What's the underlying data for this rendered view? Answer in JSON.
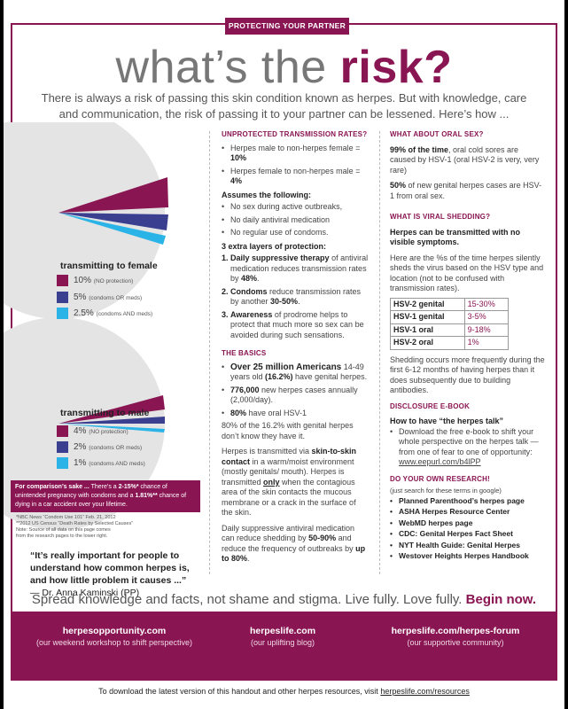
{
  "banner": "PROTECTING YOUR PARTNER",
  "title": {
    "pre": "what’s the ",
    "strong": "risk?"
  },
  "intro": "There is always a risk of passing this skin condition known as herpes. But with knowledge, care and communication, the risk of passing it to your partner can be lessened. Here’s how ...",
  "female": {
    "label": "transmitting to female",
    "items": [
      {
        "pct": "10%",
        "note": "(NO protection)",
        "color": "#8a1553"
      },
      {
        "pct": "5%",
        "note": "(condoms OR meds)",
        "color": "#3a3f8f"
      },
      {
        "pct": "2.5%",
        "note": "(condoms AND meds)",
        "color": "#29b3e6"
      }
    ]
  },
  "male": {
    "label": "transmitting to male",
    "items": [
      {
        "pct": "4%",
        "note": "(NO protection)",
        "color": "#8a1553"
      },
      {
        "pct": "2%",
        "note": "(condoms OR meds)",
        "color": "#3a3f8f"
      },
      {
        "pct": "1%",
        "note": "(condoms AND meds)",
        "color": "#29b3e6"
      }
    ]
  },
  "compare": {
    "lead": "For comparison’s sake ...",
    "l1a": " There’s a ",
    "r1": "2-15%*",
    "l1b": " chance of unintended pregnancy with condoms and a ",
    "r2": "1.81%**",
    "l2": " chance of dying in a car accident over your lifetime."
  },
  "notes": [
    "*NBC News “Condom Use 101” Feb. 21, 2012",
    "**2012 US Census “Death Rates by Selected Causes”",
    "Note: Source of all data on this page comes",
    "from the research pages to the lower right."
  ],
  "quote": {
    "text": "“It’s really important for people to understand how common herpes is, and how little problem it causes ...”",
    "who": "— Dr. Anna Kaminski (PP)"
  },
  "mid": {
    "sec1": "UNPROTECTED TRANSMISSION RATES?",
    "rates": [
      {
        "a": "Herpes male to non-herpes female = ",
        "b": "10%"
      },
      {
        "a": "Herpes female to non-herpes male = ",
        "b": "4%"
      }
    ],
    "assume": "Assumes the following:",
    "assumptions": [
      "No sex during active outbreaks,",
      "No daily antiviral medication",
      "No regular use of condoms."
    ],
    "layers": "3 extra layers of protection:",
    "layer1": {
      "n": "1.",
      "a": "Daily suppressive therapy",
      "b": " of antiviral medication reduces transmission rates by ",
      "c": "48%",
      "d": "."
    },
    "layer2": {
      "n": "2.",
      "a": "Condoms",
      "b": " reduce transmission rates by another ",
      "c": "30-50%",
      "d": "."
    },
    "layer3": {
      "n": "3.",
      "a": "Awareness",
      "b": " of prodrome helps to protect that much more so sex can be avoided during such sensations."
    },
    "sec2": "THE BASICS",
    "b1": {
      "a": "Over 25 million Americans",
      "b": "14-49 years old ",
      "c": "(16.2%)",
      "d": " have genital herpes."
    },
    "b2": {
      "a": "776,000",
      "b": " new herpes cases annually (2,000/day)."
    },
    "b3": {
      "a": "80%",
      "b": " have oral HSV-1"
    },
    "p1": {
      "a": "80% of the 16.2%",
      "b": " with genital herpes don’t know they have it."
    },
    "p2": {
      "a": "Herpes is transmitted via ",
      "b": "skin-to-skin contact",
      "c": " in a warm/moist environment (mostly genitals/ mouth). Herpes is transmitted ",
      "d": "only",
      "e": " when the contagious area of the skin contacts the mucous membrane or a crack in the surface of the skin."
    },
    "p3": {
      "a": "Daily suppressive antiviral medication can reduce shedding by ",
      "b": "50-90%",
      "c": " and reduce the frequency of outbreaks by ",
      "d": "up to 80%",
      "e": "."
    }
  },
  "right": {
    "sec1": "WHAT ABOUT ORAL SEX?",
    "o1": {
      "a": "99% of the time",
      "b": ", oral cold sores are caused by HSV-1 (oral HSV-2 is very, very rare)"
    },
    "o2": {
      "a": "50%",
      "b": " of new genital herpes cases are HSV-1 from oral sex."
    },
    "sec2": "WHAT IS VIRAL SHEDDING?",
    "shed_bold": "Herpes can be transmitted with no visible symptoms.",
    "shed_text": "Here are the %s of the time herpes silently sheds the virus based on the HSV type and location (not to be confused with transmission rates).",
    "table": [
      {
        "k": "HSV-2 genital",
        "v": "15-30%"
      },
      {
        "k": "HSV-1 genital",
        "v": "3-5%"
      },
      {
        "k": "HSV-1 oral",
        "v": "9-18%"
      },
      {
        "k": "HSV-2 oral",
        "v": "1%"
      }
    ],
    "shed_after": "Shedding occurs more frequently during the first 6-12 months of having herpes than it does subsequently due to building antibodies.",
    "sec3": "DISCLOSURE E-BOOK",
    "ebook_title": "How to have “the herpes talk”",
    "ebook_text": "Download the free e-book to shift your whole perspective on the herpes talk — from one of fear to one of opportunity:",
    "ebook_link": "www.eepurl.com/b4lPP",
    "sec4": "DO YOUR OWN RESEARCH!",
    "research_note": "(just search for these terms in google)",
    "links": [
      "Planned Parenthood’s herpes page",
      "ASHA Herpes Resource Center",
      "WebMD herpes page",
      "CDC: Genital Herpes Fact Sheet",
      "NYT Health Guide: Genital Herpes",
      "Westover Heights Herpes Handbook"
    ]
  },
  "bigline": {
    "text": "Spread knowledge and facts, not shame and stigma. Live fully. Love fully. ",
    "strong": "Begin now."
  },
  "footer": [
    {
      "url": "herpesopportunity.com",
      "sub": "(our weekend workshop to shift perspective)"
    },
    {
      "url": "herpeslife.com",
      "sub": "(our uplifting blog)"
    },
    {
      "url": "herpeslife.com/herpes-forum",
      "sub": "(our supportive community)"
    }
  ],
  "bottom": {
    "text": "To download the latest version of this handout and other herpes resources, visit ",
    "link": "herpeslife.com/resources"
  }
}
